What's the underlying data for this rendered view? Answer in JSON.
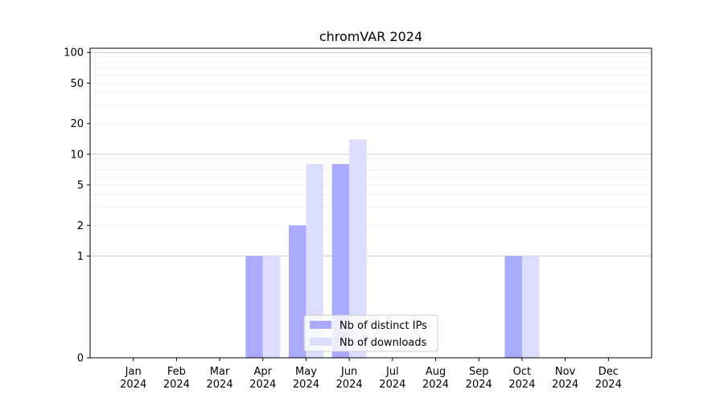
{
  "chart_data": {
    "type": "bar",
    "title": "chromVAR 2024",
    "categories": [
      [
        "Jan",
        "2024"
      ],
      [
        "Feb",
        "2024"
      ],
      [
        "Mar",
        "2024"
      ],
      [
        "Apr",
        "2024"
      ],
      [
        "May",
        "2024"
      ],
      [
        "Jun",
        "2024"
      ],
      [
        "Jul",
        "2024"
      ],
      [
        "Aug",
        "2024"
      ],
      [
        "Sep",
        "2024"
      ],
      [
        "Oct",
        "2024"
      ],
      [
        "Nov",
        "2024"
      ],
      [
        "Dec",
        "2024"
      ]
    ],
    "series": [
      {
        "name": "Nb of distinct IPs",
        "color": "#aaaaff",
        "values": [
          0,
          0,
          0,
          1,
          2,
          8,
          0,
          0,
          0,
          1,
          0,
          0
        ]
      },
      {
        "name": "Nb of downloads",
        "color": "#ddddff",
        "values": [
          0,
          0,
          0,
          1,
          8,
          14,
          0,
          0,
          0,
          1,
          0,
          0
        ]
      }
    ],
    "yscale": "symlog",
    "yticks": [
      0,
      1,
      2,
      5,
      10,
      20,
      50,
      100
    ],
    "ylim": [
      0,
      110
    ],
    "grid": true,
    "legend_position": "bottom-center",
    "xlabel": "",
    "ylabel": ""
  }
}
